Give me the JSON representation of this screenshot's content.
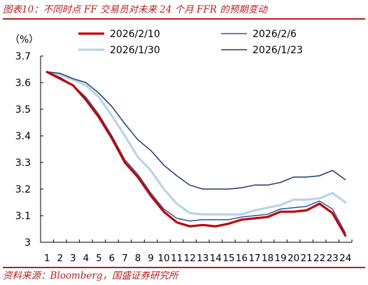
{
  "title": "图表10：不同时点 FF 交易员对未来 24 个月 FFR 的预期变动",
  "source": "资料来源：Bloomberg，国盛证券研究所",
  "chart_data": {
    "type": "line",
    "unit_label": "（%）",
    "ylim": [
      3.0,
      3.7
    ],
    "yticks": [
      "3",
      "3.1",
      "3.2",
      "3.3",
      "3.4",
      "3.5",
      "3.6",
      "3.7"
    ],
    "x": [
      1,
      2,
      3,
      4,
      5,
      6,
      7,
      8,
      9,
      10,
      11,
      12,
      13,
      14,
      15,
      16,
      17,
      18,
      19,
      20,
      21,
      22,
      23,
      24
    ],
    "grid": false,
    "legend_position": "top",
    "series": [
      {
        "name": "2026/2/10",
        "color": "#c00000",
        "width": 3.2,
        "values": [
          3.64,
          3.615,
          3.59,
          3.535,
          3.47,
          3.39,
          3.3,
          3.245,
          3.175,
          3.115,
          3.075,
          3.06,
          3.065,
          3.06,
          3.07,
          3.085,
          3.09,
          3.095,
          3.115,
          3.115,
          3.12,
          3.145,
          3.11,
          3.025
        ]
      },
      {
        "name": "2026/2/6",
        "color": "#2e5597",
        "width": 1.5,
        "values": [
          3.64,
          3.62,
          3.59,
          3.545,
          3.48,
          3.4,
          3.31,
          3.255,
          3.185,
          3.125,
          3.09,
          3.08,
          3.085,
          3.085,
          3.085,
          3.095,
          3.1,
          3.105,
          3.125,
          3.13,
          3.135,
          3.155,
          3.125,
          3.035
        ]
      },
      {
        "name": "2026/1/30",
        "color": "#b8d3e8",
        "width": 3.2,
        "values": [
          3.64,
          3.63,
          3.61,
          3.59,
          3.545,
          3.475,
          3.4,
          3.32,
          3.27,
          3.2,
          3.145,
          3.11,
          3.105,
          3.105,
          3.105,
          3.105,
          3.12,
          3.13,
          3.14,
          3.16,
          3.16,
          3.165,
          3.185,
          3.15
        ]
      },
      {
        "name": "2026/1/23",
        "color": "#1f3a68",
        "width": 1.5,
        "values": [
          3.64,
          3.635,
          3.615,
          3.6,
          3.56,
          3.51,
          3.445,
          3.385,
          3.345,
          3.29,
          3.25,
          3.215,
          3.2,
          3.2,
          3.2,
          3.205,
          3.215,
          3.215,
          3.225,
          3.245,
          3.245,
          3.25,
          3.27,
          3.235
        ]
      }
    ]
  }
}
